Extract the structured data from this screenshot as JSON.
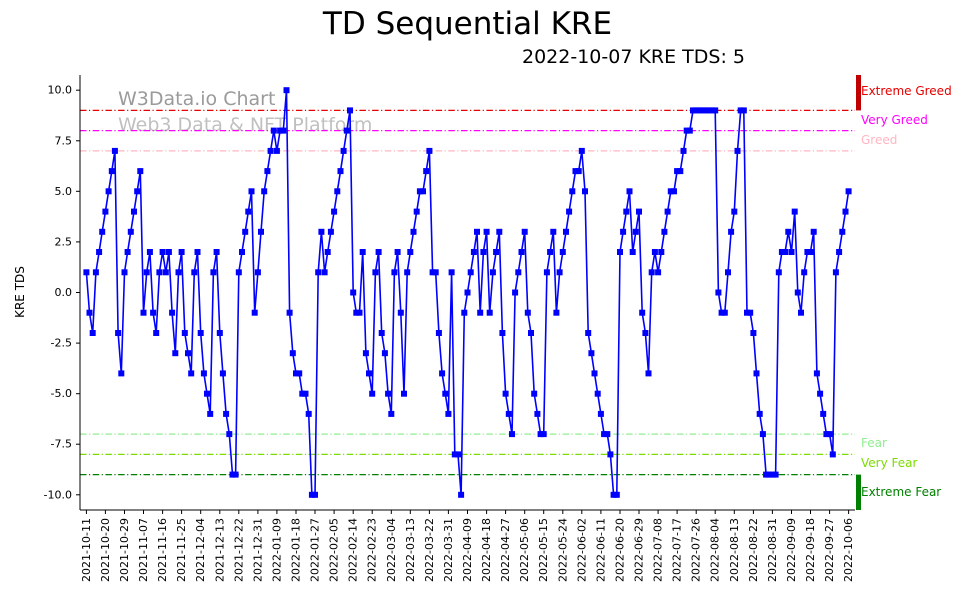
{
  "header": {
    "title": "TD Sequential KRE",
    "subtitle": "2022-10-07 KRE TDS: 5"
  },
  "watermark": {
    "line1": "W3Data.io Chart",
    "line2": "Web3 Data & NFT Platform"
  },
  "chart_data": {
    "type": "line",
    "title": "TD Sequential KRE",
    "annotation": "2022-10-07 KRE TDS: 5",
    "xlabel": "",
    "ylabel": "KRE TDS",
    "ylim": [
      -10.75,
      10.75
    ],
    "grid": false,
    "legend": "none",
    "y_ticks": [
      10.0,
      7.5,
      5.0,
      2.5,
      0.0,
      -2.5,
      -5.0,
      -7.5,
      -10.0
    ],
    "x_ticks_every_n_points": 6,
    "x_tick_labels": [
      "2021-10-11",
      "2021-10-20",
      "2021-10-29",
      "2021-11-07",
      "2021-11-16",
      "2021-11-25",
      "2021-12-04",
      "2021-12-13",
      "2021-12-22",
      "2021-12-31",
      "2022-01-09",
      "2022-01-18",
      "2022-01-27",
      "2022-02-05",
      "2022-02-14",
      "2022-02-23",
      "2022-03-04",
      "2022-03-13",
      "2022-03-22",
      "2022-03-31",
      "2022-04-09",
      "2022-04-18",
      "2022-04-27",
      "2022-05-06",
      "2022-05-15",
      "2022-05-24",
      "2022-06-02",
      "2022-06-11",
      "2022-06-20",
      "2022-06-29",
      "2022-07-08",
      "2022-07-17",
      "2022-07-26",
      "2022-08-04",
      "2022-08-13",
      "2022-08-22",
      "2022-08-31",
      "2022-09-09",
      "2022-09-18",
      "2022-09-27",
      "2022-10-06"
    ],
    "series": [
      {
        "name": "KRE TDS",
        "color": "#0000ff",
        "marker": "square",
        "values": [
          1,
          -1,
          -2,
          1,
          2,
          3,
          4,
          5,
          6,
          7,
          -2,
          -4,
          1,
          2,
          3,
          4,
          5,
          6,
          -1,
          1,
          2,
          -1,
          -2,
          1,
          2,
          1,
          2,
          -1,
          -3,
          1,
          2,
          -2,
          -3,
          -4,
          1,
          2,
          -2,
          -4,
          -5,
          -6,
          1,
          2,
          -2,
          -4,
          -6,
          -7,
          -9,
          -9,
          1,
          2,
          3,
          4,
          5,
          -1,
          1,
          3,
          5,
          6,
          7,
          8,
          7,
          8,
          8,
          10,
          -1,
          -3,
          -4,
          -4,
          -5,
          -5,
          -6,
          -10,
          -10,
          1,
          3,
          1,
          2,
          3,
          4,
          5,
          6,
          7,
          8,
          9,
          0,
          -1,
          -1,
          2,
          -3,
          -4,
          -5,
          1,
          2,
          -2,
          -3,
          -5,
          -6,
          1,
          2,
          -1,
          -5,
          1,
          2,
          3,
          4,
          5,
          5,
          6,
          7,
          1,
          1,
          -2,
          -4,
          -5,
          -6,
          1,
          -8,
          -8,
          -10,
          -1,
          0,
          1,
          2,
          3,
          -1,
          2,
          3,
          -1,
          1,
          2,
          3,
          -2,
          -5,
          -6,
          -7,
          0,
          1,
          2,
          3,
          -1,
          -2,
          -5,
          -6,
          -7,
          -7,
          1,
          2,
          3,
          -1,
          1,
          2,
          3,
          4,
          5,
          6,
          6,
          7,
          5,
          -2,
          -3,
          -4,
          -5,
          -6,
          -7,
          -7,
          -8,
          -10,
          -10,
          2,
          3,
          4,
          5,
          2,
          3,
          4,
          -1,
          -2,
          -4,
          1,
          2,
          1,
          2,
          3,
          4,
          5,
          5,
          6,
          6,
          7,
          8,
          8,
          9,
          9,
          9,
          9,
          9,
          9,
          9,
          9,
          0,
          -1,
          -1,
          1,
          3,
          4,
          7,
          9,
          9,
          -1,
          -1,
          -2,
          -4,
          -6,
          -7,
          -9,
          -9,
          -9,
          -9,
          1,
          2,
          2,
          3,
          2,
          4,
          0,
          -1,
          1,
          2,
          2,
          3,
          -4,
          -5,
          -6,
          -7,
          -7,
          -8,
          1,
          2,
          3,
          4,
          5
        ]
      }
    ],
    "reference_lines": [
      {
        "y": 9,
        "label": "Extreme Greed",
        "color": "#e60000",
        "style": "dashdot",
        "label_y": 9.9
      },
      {
        "y": 8,
        "label": "Very Greed",
        "color": "#ff00ff",
        "style": "dashdot",
        "label_y": 8.5
      },
      {
        "y": 7,
        "label": "Greed",
        "color": "#ffb6c1",
        "style": "dashdot",
        "label_y": 7.5
      },
      {
        "y": -7,
        "label": "Fear",
        "color": "#90ee90",
        "style": "dashdot",
        "label_y": -7.5
      },
      {
        "y": -8,
        "label": "Very Fear",
        "color": "#7cdc00",
        "style": "dashdot",
        "label_y": -8.5
      },
      {
        "y": -9,
        "label": "Extreme Fear",
        "color": "#008000",
        "style": "dashdot",
        "label_y": -9.9
      }
    ],
    "edge_bars": [
      {
        "from": 9,
        "to": 10.75,
        "color": "#c00000",
        "name": "extreme-greed-bar"
      },
      {
        "from": -9,
        "to": -10.75,
        "color": "#008000",
        "name": "extreme-fear-bar"
      }
    ]
  }
}
